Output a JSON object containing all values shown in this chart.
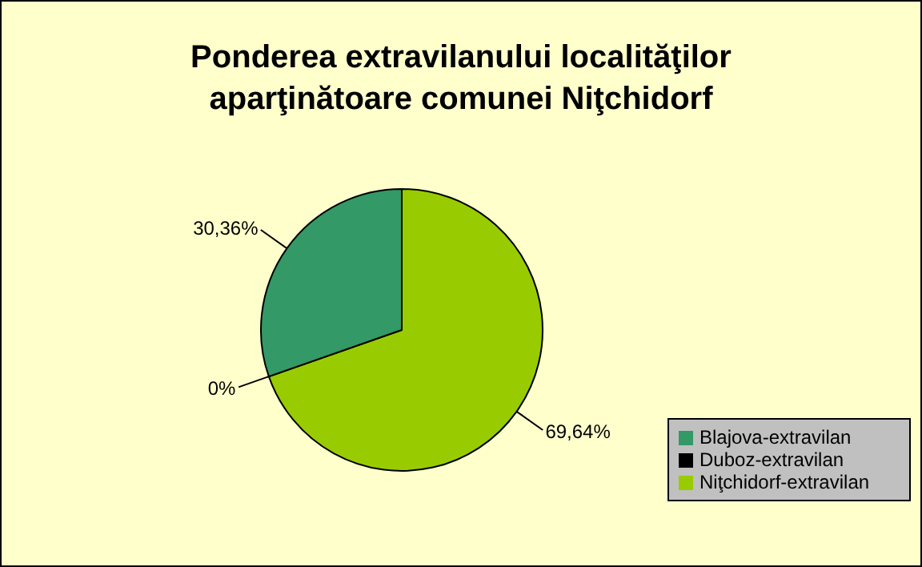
{
  "chart_data": {
    "type": "pie",
    "title": "Ponderea extravilanului localităţilor\naparţinătoare comunei Niţchidorf",
    "categories": [
      "Niţchidorf-extravilan",
      "Duboz-extravilan",
      "Blajova-extravilan"
    ],
    "values": [
      69.64,
      0,
      30.36
    ],
    "colors": [
      "#99cc00",
      "#000000",
      "#339966"
    ],
    "value_labels": [
      "69,64%",
      "0%",
      "30,36%"
    ],
    "legend": "bottom right"
  }
}
